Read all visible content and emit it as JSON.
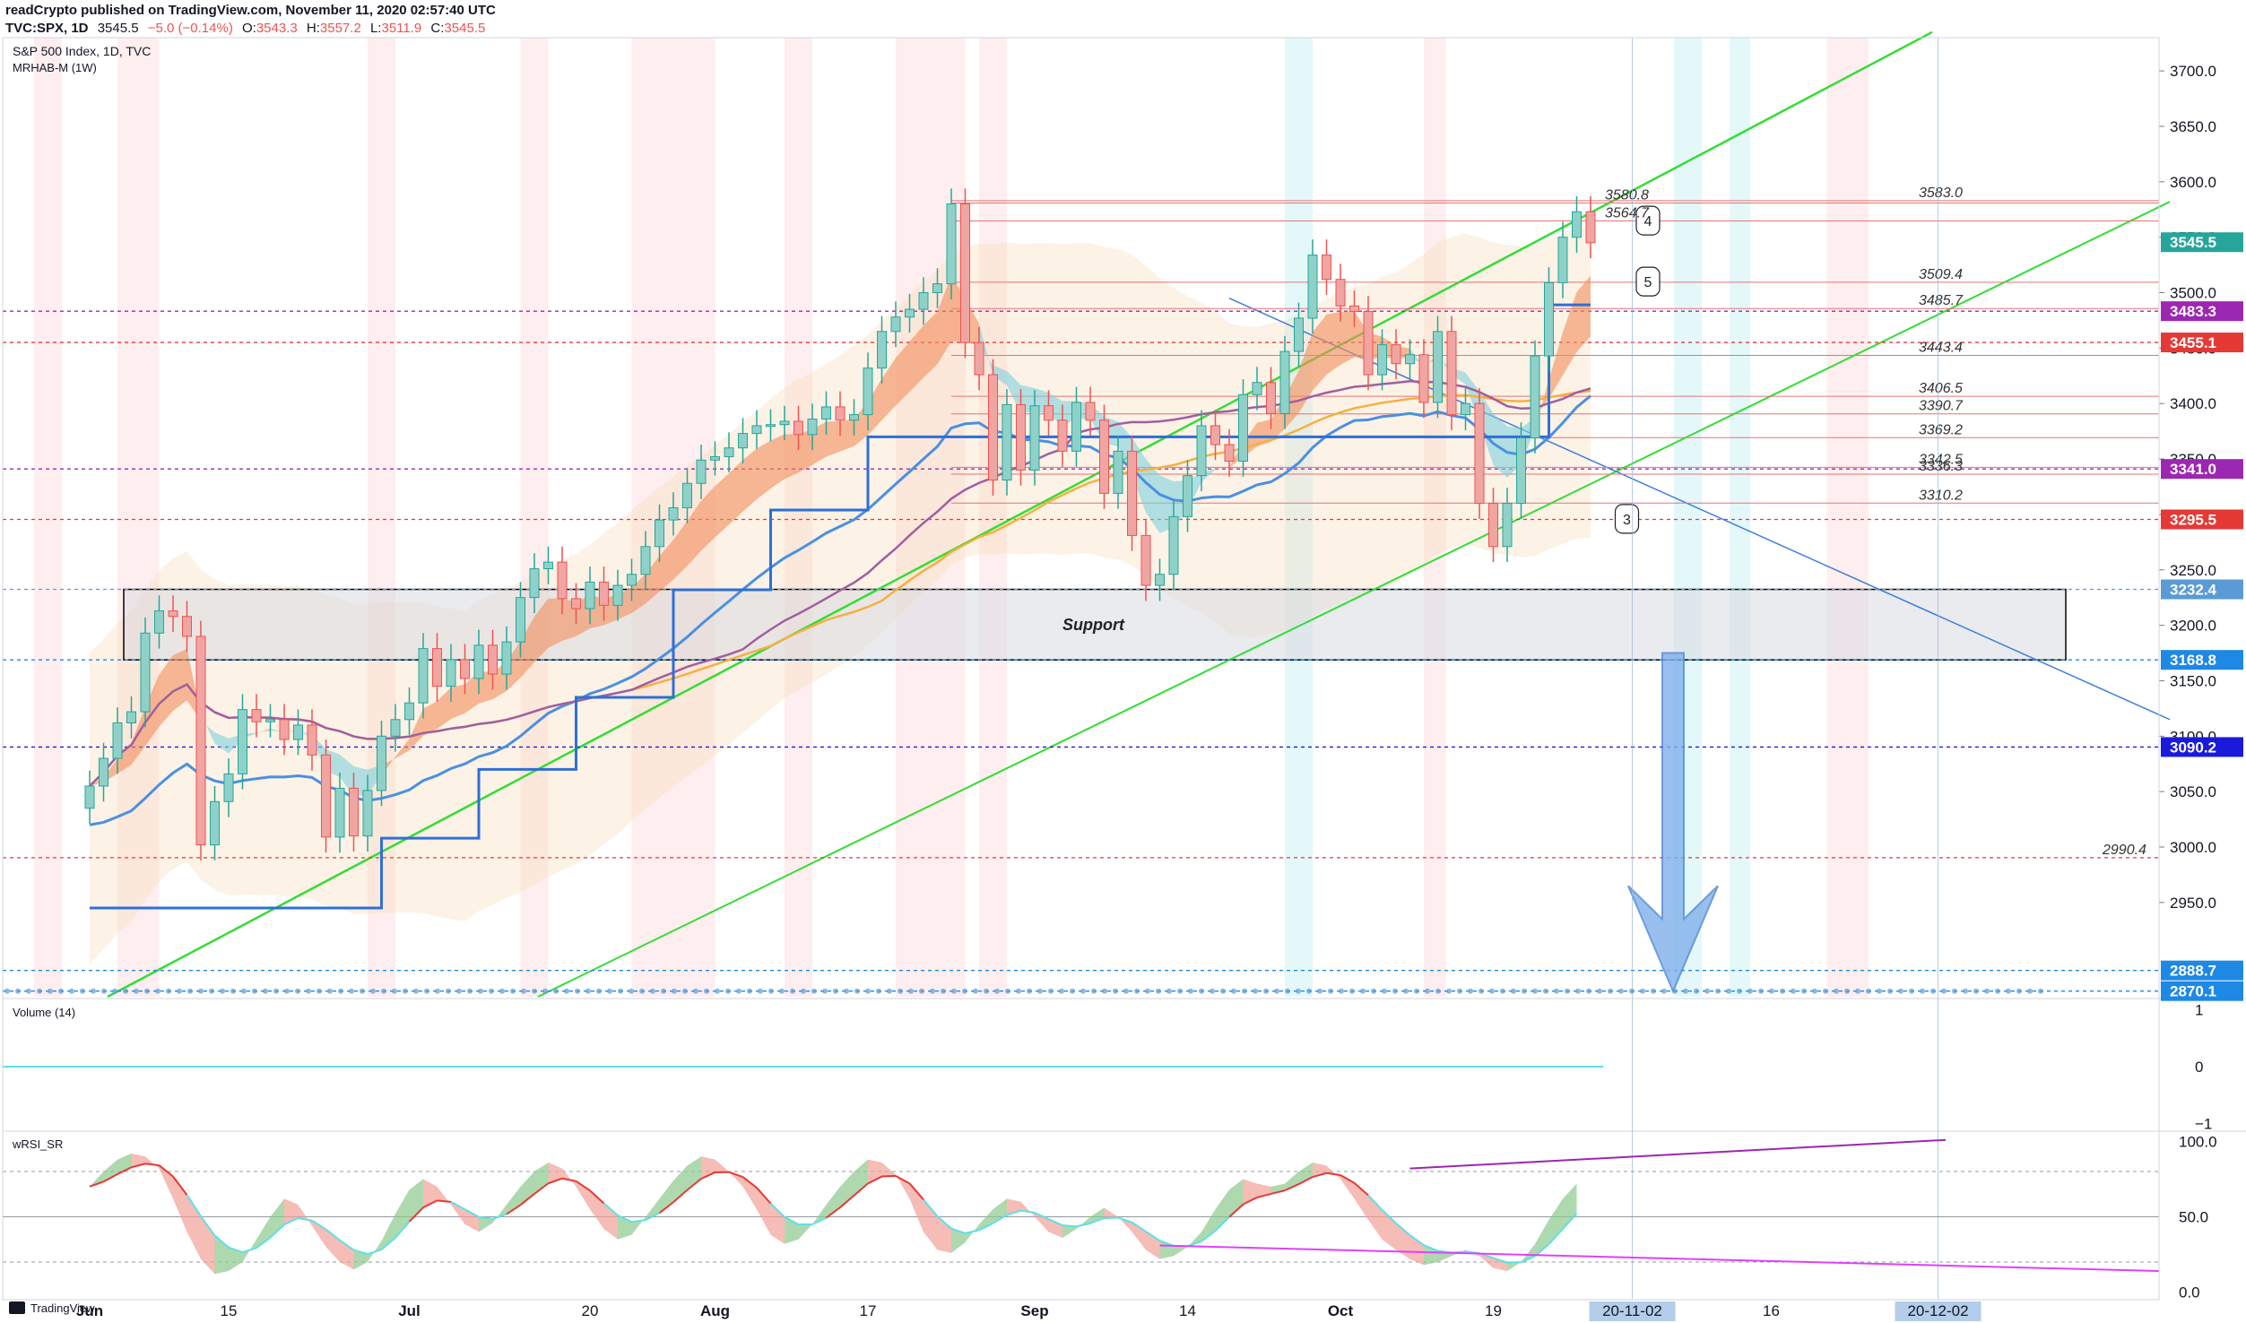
{
  "header": {
    "publish_line": "readCrypto published on TradingView.com, November 11, 2020 02:57:40 UTC",
    "symbol": "TVC:SPX, 1D",
    "last": "3545.5",
    "change": "−5.0 (−0.14%)",
    "ohlc": {
      "o": "3543.3",
      "h": "3557.2",
      "l": "3511.9",
      "c": "3545.5"
    }
  },
  "legend": {
    "title": "S&P 500 Index, 1D, TVC",
    "indicator": "MRHAB-M (1W)"
  },
  "footer": {
    "brand": "TradingView"
  },
  "colors": {
    "up": "#26a69a",
    "down": "#ef5350",
    "accent_blue": "#4a90e2",
    "channel_green": "#33dd33",
    "ema_orange": "#f5b041",
    "ma_purple": "#a05fa0"
  },
  "chart_data": [
    {
      "type": "candlestick",
      "title": "S&P 500 Index, 1D, TVC",
      "ylim": [
        2865,
        3730
      ],
      "x_ticks": [
        {
          "label": "Jun",
          "i": 0
        },
        {
          "label": "15",
          "i": 10
        },
        {
          "label": "Jul",
          "i": 23
        },
        {
          "label": "20",
          "i": 36
        },
        {
          "label": "Aug",
          "i": 45
        },
        {
          "label": "17",
          "i": 56
        },
        {
          "label": "Sep",
          "i": 68
        },
        {
          "label": "14",
          "i": 79
        },
        {
          "label": "Oct",
          "i": 90
        },
        {
          "label": "19",
          "i": 101
        },
        {
          "label": "20-11-02",
          "i": 111
        },
        {
          "label": "16",
          "i": 121
        },
        {
          "label": "20-12-02",
          "i": 133
        }
      ],
      "y_ticks": [
        2950.0,
        3000.0,
        3050.0,
        3100.0,
        3150.0,
        3200.0,
        3250.0,
        3300.0,
        3350.0,
        3400.0,
        3450.0,
        3500.0,
        3550.0,
        3600.0,
        3650.0,
        3700.0
      ],
      "y_tick_labels": [
        "2950.0",
        "3000.0",
        "3050.0",
        "3100.0",
        "3150.0",
        "3200.0",
        "3250.0",
        "3300.0",
        "3350.0",
        "3400.0",
        "3450.0",
        "3500.0",
        "3550.0",
        "3600.0",
        "3650.0",
        "3700.0"
      ],
      "price_tags": [
        {
          "label": "3545.5",
          "value": 3545.5,
          "color": "#26a69a"
        },
        {
          "label": "3483.3",
          "value": 3483.3,
          "color": "#9c27b0"
        },
        {
          "label": "3455.1",
          "value": 3455.1,
          "color": "#e53935"
        },
        {
          "label": "3341.0",
          "value": 3341.0,
          "color": "#9c27b0"
        },
        {
          "label": "3295.5",
          "value": 3295.5,
          "color": "#e53935"
        },
        {
          "label": "3232.4",
          "value": 3232.4,
          "color": "#5b9bd5"
        },
        {
          "label": "3168.8",
          "value": 3168.8,
          "color": "#1e88e5"
        },
        {
          "label": "3090.2",
          "value": 3090.2,
          "color": "#1a1adc"
        },
        {
          "label": "2888.7",
          "value": 2888.7,
          "color": "#1e88e5"
        },
        {
          "label": "2870.1",
          "value": 2870.1,
          "color": "#1e88e5"
        }
      ],
      "level_labels": [
        {
          "label": "3583.0",
          "value": 3583.0
        },
        {
          "label": "3580.8",
          "value": 3580.8
        },
        {
          "label": "3564.7",
          "value": 3564.7
        },
        {
          "label": "3509.4",
          "value": 3509.4
        },
        {
          "label": "3485.7",
          "value": 3485.7
        },
        {
          "label": "3443.4",
          "value": 3443.4
        },
        {
          "label": "3406.5",
          "value": 3406.5
        },
        {
          "label": "3390.7",
          "value": 3390.7
        },
        {
          "label": "3369.2",
          "value": 3369.2
        },
        {
          "label": "3342.5",
          "value": 3342.5
        },
        {
          "label": "3336.3",
          "value": 3336.3
        },
        {
          "label": "3310.2",
          "value": 3310.2
        },
        {
          "label": "2990.4",
          "value": 2990.4
        }
      ],
      "annotations": [
        {
          "text": "Support",
          "from": 3168.8,
          "to": 3232.4
        },
        {
          "text": "3",
          "wave": true
        },
        {
          "text": "4",
          "wave": true
        },
        {
          "text": "5",
          "wave": true
        }
      ],
      "closes": [
        3055,
        3080,
        3112,
        3122,
        3193,
        3213,
        3208,
        3190,
        3002,
        3041,
        3066,
        3124,
        3113,
        3115,
        3097,
        3110,
        3083,
        3009,
        3053,
        3010,
        3051,
        3100,
        3115,
        3130,
        3179,
        3145,
        3169,
        3152,
        3182,
        3156,
        3185,
        3225,
        3251,
        3257,
        3224,
        3215,
        3239,
        3218,
        3236,
        3246,
        3271,
        3295,
        3306,
        3328,
        3349,
        3352,
        3360,
        3373,
        3380,
        3381,
        3384,
        3372,
        3386,
        3397,
        3385,
        3390,
        3432,
        3465,
        3478,
        3485,
        3500,
        3508,
        3580,
        3455,
        3426,
        3331,
        3399,
        3340,
        3398,
        3385,
        3357,
        3401,
        3385,
        3319,
        3357,
        3281,
        3236,
        3246,
        3298,
        3335,
        3380,
        3363,
        3348,
        3408,
        3419,
        3391,
        3447,
        3477,
        3534,
        3512,
        3488,
        3483,
        3426,
        3453,
        3436,
        3444,
        3401,
        3465,
        3390,
        3400,
        3310,
        3271,
        3310,
        3369,
        3443,
        3509,
        3550,
        3573,
        3545
      ]
    },
    {
      "type": "line",
      "title": "Volume (14)",
      "ylim": [
        -1.1,
        1.1
      ],
      "y_ticks": [
        1,
        0,
        -1
      ],
      "y_tick_labels": [
        "1",
        "0",
        "−1"
      ],
      "series": [
        {
          "values": [
            0,
            0
          ]
        }
      ]
    },
    {
      "type": "line",
      "title": "wRSI_SR",
      "ylim": [
        -5,
        105
      ],
      "y_ticks": [
        100,
        50,
        0
      ],
      "y_tick_labels": [
        "100.0",
        "50.0",
        "0.0"
      ],
      "series": [
        {
          "values": [
            70,
            80,
            88,
            92,
            90,
            82,
            62,
            40,
            22,
            12,
            14,
            20,
            35,
            50,
            62,
            58,
            44,
            30,
            20,
            15,
            20,
            34,
            52,
            68,
            75,
            70,
            58,
            45,
            40,
            46,
            58,
            70,
            80,
            86,
            82,
            70,
            55,
            42,
            35,
            38,
            50,
            62,
            74,
            84,
            90,
            88,
            80,
            70,
            55,
            38,
            32,
            35,
            45,
            58,
            70,
            80,
            88,
            86,
            78,
            62,
            40,
            28,
            26,
            33,
            45,
            55,
            62,
            60,
            50,
            40,
            36,
            42,
            50,
            56,
            50,
            40,
            28,
            22,
            24,
            30,
            40,
            55,
            68,
            75,
            72,
            70,
            72,
            80,
            86,
            84,
            75,
            62,
            48,
            35,
            28,
            22,
            18,
            20,
            24,
            28,
            24,
            16,
            14,
            20,
            32,
            48,
            62,
            72
          ]
        }
      ]
    }
  ]
}
